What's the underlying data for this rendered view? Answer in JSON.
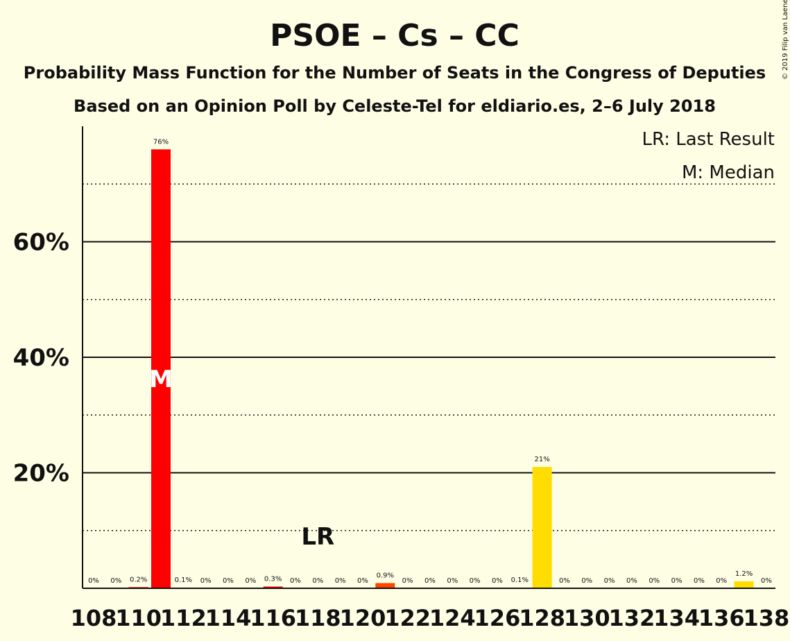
{
  "chart_data": {
    "type": "bar",
    "title": "PSOE – Cs – CC",
    "subtitle_1": "Probability Mass Function for the Number of Seats in the Congress of Deputies",
    "subtitle_2": "Based on an Opinion Poll by Celeste-Tel for eldiario.es, 2–6 July 2018",
    "copyright": "© 2019 Filip van Laenen",
    "legend": {
      "position": "top-right",
      "last_result": "LR: Last Result",
      "median": "M: Median"
    },
    "markers": {
      "last_result": {
        "label": "LR",
        "seats": 118
      },
      "median": {
        "label": "M",
        "seats": 111
      }
    },
    "ylim": [
      0,
      80
    ],
    "y_major_ticks": [
      20,
      40,
      60
    ],
    "y_major_tick_labels": [
      "20%",
      "40%",
      "60%"
    ],
    "y_minor_gridlines": [
      10,
      30,
      50,
      70
    ],
    "x_tick_labels": [
      "108",
      "110",
      "112",
      "114",
      "116",
      "118",
      "120",
      "122",
      "124",
      "126",
      "128",
      "130",
      "132",
      "134",
      "136",
      "138"
    ],
    "seats": [
      108,
      109,
      110,
      111,
      112,
      113,
      114,
      115,
      116,
      117,
      118,
      119,
      120,
      121,
      122,
      123,
      124,
      125,
      126,
      127,
      128,
      129,
      130,
      131,
      132,
      133,
      134,
      135,
      136,
      137,
      138
    ],
    "values": [
      0,
      0,
      0.2,
      76,
      0.1,
      0,
      0,
      0,
      0.3,
      0,
      0,
      0,
      0,
      0.9,
      0,
      0,
      0,
      0,
      0,
      0.1,
      21,
      0,
      0,
      0,
      0,
      0,
      0,
      0,
      0,
      1.2,
      0
    ],
    "value_labels": [
      "0%",
      "0%",
      "0.2%",
      "76%",
      "0.1%",
      "0%",
      "0%",
      "0%",
      "0.3%",
      "0%",
      "0%",
      "0%",
      "0%",
      "0.9%",
      "0%",
      "0%",
      "0%",
      "0%",
      "0%",
      "0.1%",
      "21%",
      "0%",
      "0%",
      "0%",
      "0%",
      "0%",
      "0%",
      "0%",
      "0%",
      "1.2%",
      "0%"
    ],
    "bar_colors": [
      "#ff0000",
      "#ff0000",
      "#ff0000",
      "#ff0000",
      "#ff0000",
      "#ff0000",
      "#ff0000",
      "#ff0000",
      "#ff0000",
      "#ff0000",
      "#ff0000",
      "#ff0000",
      "#ff0000",
      "#ff4500",
      "#ff4500",
      "#ff4500",
      "#ff4500",
      "#ff4500",
      "#ff4500",
      "#ffdd00",
      "#ffdd00",
      "#ffdd00",
      "#ffdd00",
      "#ffdd00",
      "#ffdd00",
      "#ffdd00",
      "#ffdd00",
      "#ffdd00",
      "#ffdd00",
      "#ffdd00",
      "#ffdd00"
    ],
    "colors": {
      "background": "#fefee5",
      "psoe": "#ff0000",
      "cs": "#ff4500",
      "cc": "#ffdd00"
    }
  }
}
